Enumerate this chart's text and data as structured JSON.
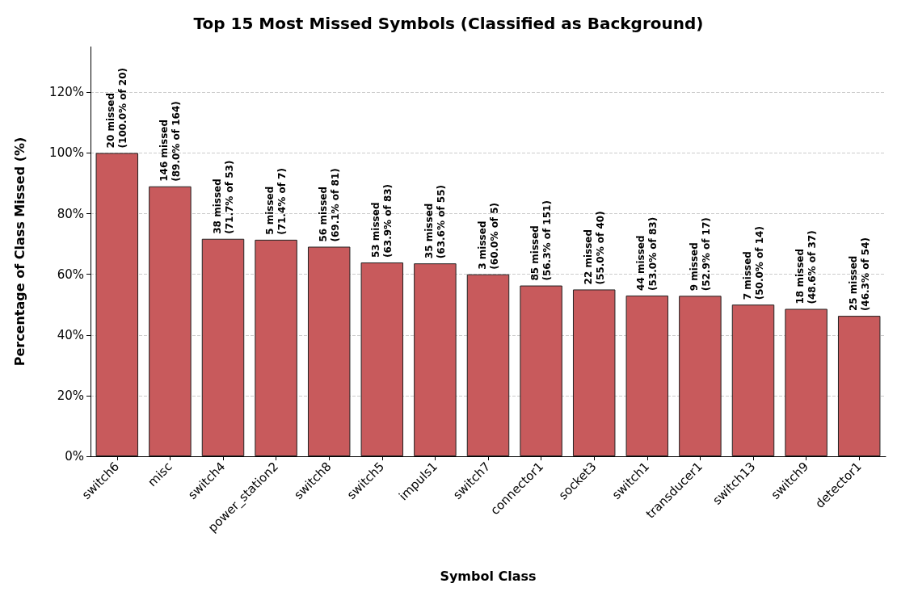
{
  "chart_data": {
    "type": "bar",
    "title": "Top 15 Most Missed Symbols (Classified as Background)",
    "xlabel": "Symbol Class",
    "ylabel": "Percentage of Class Missed (%)",
    "categories": [
      "switch6",
      "misc",
      "switch4",
      "power_station2",
      "switch8",
      "switch5",
      "impuls1",
      "switch7",
      "connector1",
      "socket3",
      "switch1",
      "transducer1",
      "switch13",
      "switch9",
      "detector1"
    ],
    "values": [
      100.0,
      89.0,
      71.7,
      71.4,
      69.1,
      63.9,
      63.6,
      60.0,
      56.3,
      55.0,
      53.0,
      52.9,
      50.0,
      48.6,
      46.3
    ],
    "value_labels": [
      "20 missed\n(100.0% of 20)",
      "146 missed\n(89.0% of 164)",
      "38 missed\n(71.7% of 53)",
      "5 missed\n(71.4% of 7)",
      "56 missed\n(69.1% of 81)",
      "53 missed\n(63.9% of 83)",
      "35 missed\n(63.6% of 55)",
      "3 missed\n(60.0% of 5)",
      "85 missed\n(56.3% of 151)",
      "22 missed\n(55.0% of 40)",
      "44 missed\n(53.0% of 83)",
      "9 missed\n(52.9% of 17)",
      "7 missed\n(50.0% of 14)",
      "18 missed\n(48.6% of 37)",
      "25 missed\n(46.3% of 54)"
    ],
    "color": "#c85a5c",
    "ylim": [
      0,
      135
    ],
    "yticks": [
      {
        "value": 0,
        "label": "0%"
      },
      {
        "value": 20,
        "label": "20%"
      },
      {
        "value": 40,
        "label": "40%"
      },
      {
        "value": 60,
        "label": "60%"
      },
      {
        "value": 80,
        "label": "80%"
      },
      {
        "value": 100,
        "label": "100%"
      },
      {
        "value": 120,
        "label": "120%"
      }
    ],
    "grid": "y"
  }
}
